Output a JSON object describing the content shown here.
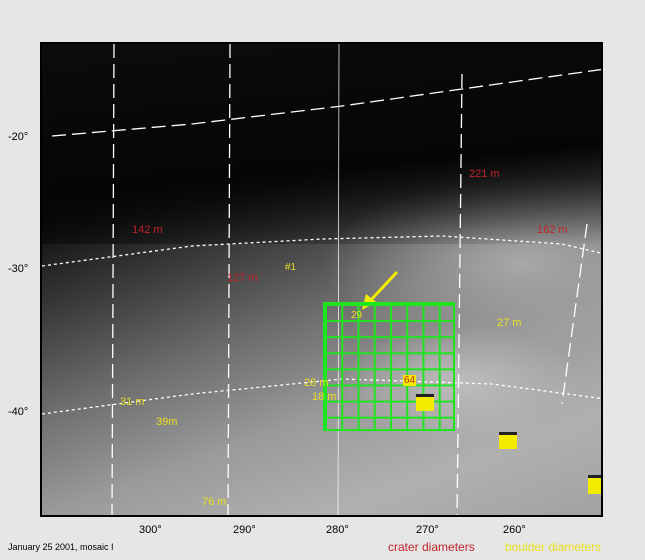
{
  "latitude_labels": [
    "-20°",
    "-30°",
    "-40°"
  ],
  "longitude_labels": [
    "300°",
    "290°",
    "280°",
    "270°",
    "260°"
  ],
  "crater_labels": [
    "221 m",
    "142 m",
    "162 m",
    "127 m"
  ],
  "boulder_labels": [
    "27 m",
    "28 m",
    "18 m",
    "31 m",
    "39m",
    "76 m"
  ],
  "grid": {
    "first_cell": "#1",
    "last_cell": "64",
    "marked_cell": "29",
    "grid_color": "#1ee61e"
  },
  "caption": "January 25 2001, mosaic I",
  "legend": {
    "crater": "crater diameters",
    "boulder": "boulder diameters",
    "crater_color": "#c0242a",
    "boulder_color": "#e8e020"
  }
}
